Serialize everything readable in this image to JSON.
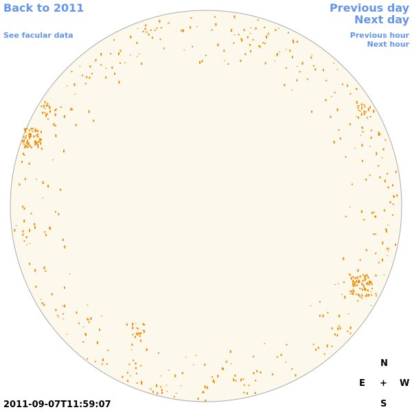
{
  "header": {
    "back_link": "Back to 2011",
    "facular_link": "See facular data",
    "previous_day": "Previous day",
    "next_day": "Next day",
    "previous_hour": "Previous hour",
    "next_hour": "Next hour"
  },
  "timestamp": "2011-09-07T11:59:07",
  "compass": {
    "north": "N",
    "east": "E",
    "center": "+",
    "west": "W",
    "south": "S"
  }
}
